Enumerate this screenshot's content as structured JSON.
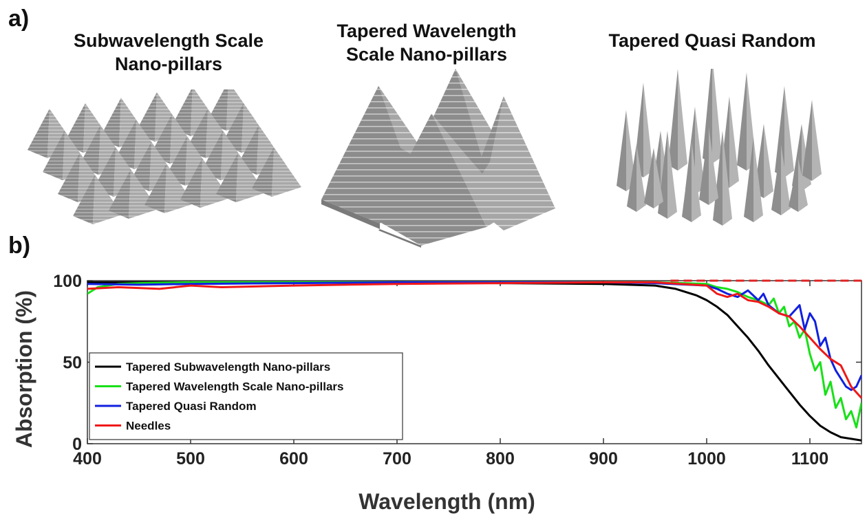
{
  "panels": {
    "a_label": "a)",
    "b_label": "b)",
    "illustrations": [
      {
        "title_line1": "Subwavelength Scale",
        "title_line2": "Nano-pillars"
      },
      {
        "title_line1": "Tapered Wavelength",
        "title_line2": "Scale Nano-pillars"
      },
      {
        "title_line1": "Tapered Quasi Random",
        "title_line2": ""
      }
    ]
  },
  "chart_data": {
    "type": "line",
    "xlabel": "Wavelength (nm)",
    "ylabel": "Absorption (%)",
    "xlim": [
      400,
      1150
    ],
    "ylim": [
      0,
      100
    ],
    "xticks": [
      400,
      500,
      600,
      700,
      800,
      900,
      1000,
      1100
    ],
    "yticks": [
      0,
      50,
      100
    ],
    "legend_position": "lower-left",
    "reference_line": {
      "y": 100,
      "style": "dashed",
      "color": "#e02020",
      "x_start": 965,
      "x_end": 1150
    },
    "series": [
      {
        "name": "Tapered Subwavelength Nano-pillars",
        "color": "#000000",
        "x": [
          400,
          500,
          600,
          700,
          800,
          900,
          950,
          970,
          990,
          1000,
          1010,
          1020,
          1030,
          1040,
          1050,
          1060,
          1070,
          1080,
          1090,
          1100,
          1110,
          1120,
          1130,
          1140,
          1150
        ],
        "y": [
          99,
          99,
          99,
          99,
          98.5,
          98,
          97,
          95,
          91,
          88,
          84,
          79,
          72,
          65,
          57,
          48,
          40,
          32,
          24,
          17,
          11,
          7,
          4,
          3,
          2
        ]
      },
      {
        "name": "Tapered Wavelength Scale Nano-pillars",
        "color": "#18e018",
        "x": [
          400,
          410,
          430,
          450,
          500,
          600,
          700,
          800,
          900,
          950,
          1000,
          1010,
          1020,
          1030,
          1040,
          1050,
          1060,
          1065,
          1070,
          1075,
          1080,
          1085,
          1090,
          1095,
          1100,
          1105,
          1110,
          1115,
          1120,
          1125,
          1130,
          1135,
          1140,
          1145,
          1150
        ],
        "y": [
          92,
          96,
          98,
          98.5,
          99,
          99,
          99,
          99,
          99,
          99,
          98,
          96,
          95,
          93,
          90,
          88,
          85,
          89,
          80,
          84,
          72,
          75,
          65,
          70,
          55,
          45,
          50,
          30,
          38,
          22,
          28,
          15,
          20,
          10,
          25
        ]
      },
      {
        "name": "Tapered Quasi Random",
        "color": "#1020e0",
        "x": [
          400,
          450,
          500,
          600,
          700,
          800,
          900,
          950,
          1000,
          1010,
          1020,
          1030,
          1040,
          1050,
          1055,
          1060,
          1070,
          1080,
          1090,
          1095,
          1100,
          1105,
          1110,
          1115,
          1120,
          1125,
          1130,
          1135,
          1140,
          1145,
          1150
        ],
        "y": [
          98,
          97.5,
          98,
          98.5,
          99,
          99,
          99,
          98.5,
          97,
          95,
          92,
          90,
          94,
          88,
          92,
          85,
          80,
          78,
          85,
          70,
          80,
          75,
          60,
          65,
          52,
          45,
          40,
          35,
          33,
          35,
          42
        ]
      },
      {
        "name": "Needles",
        "color": "#f01818",
        "x": [
          400,
          430,
          470,
          500,
          530,
          600,
          700,
          800,
          900,
          950,
          1000,
          1010,
          1020,
          1030,
          1040,
          1050,
          1060,
          1070,
          1080,
          1090,
          1100,
          1110,
          1120,
          1130,
          1140,
          1150
        ],
        "y": [
          95,
          96,
          95,
          97,
          96,
          97,
          98,
          98.5,
          99,
          99,
          97,
          92,
          90,
          92,
          88,
          87,
          84,
          80,
          78,
          72,
          65,
          58,
          52,
          48,
          35,
          28
        ]
      }
    ]
  }
}
